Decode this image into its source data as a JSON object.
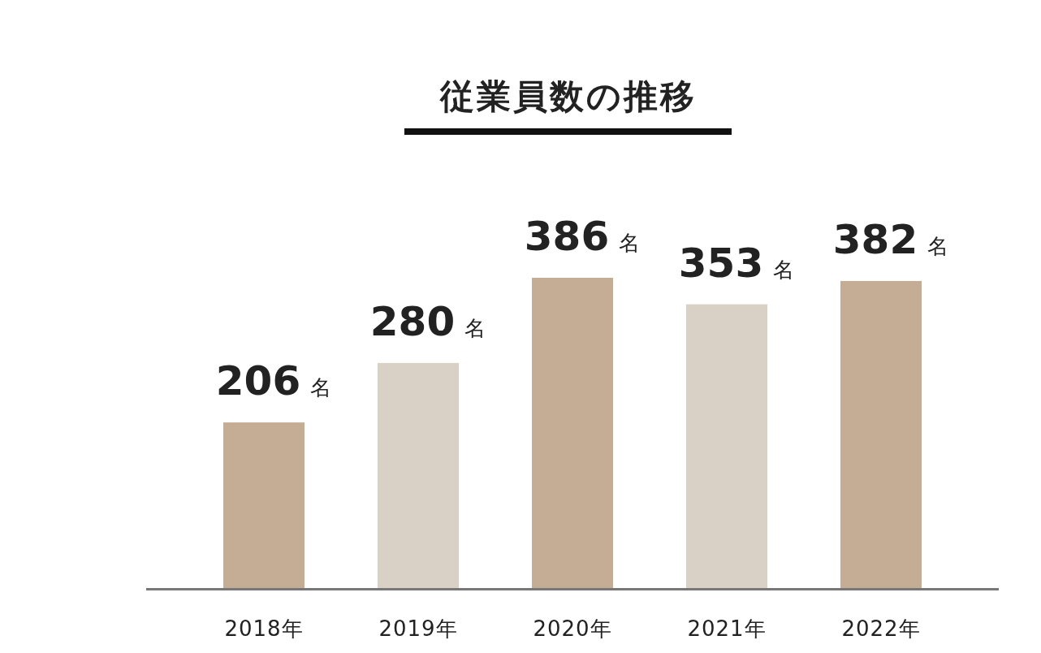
{
  "chart_data": {
    "type": "bar",
    "title": "従業員数の推移",
    "categories": [
      "2018年",
      "2019年",
      "2020年",
      "2021年",
      "2022年"
    ],
    "values": [
      206,
      280,
      386,
      353,
      382
    ],
    "colors": [
      "#c5ad95",
      "#d9d0c6",
      "#c5ad95",
      "#d9d0c6",
      "#c5ad95"
    ],
    "value_labels": [
      "206 名",
      "280 名",
      "386 名",
      "353 名",
      "382 名"
    ]
  }
}
